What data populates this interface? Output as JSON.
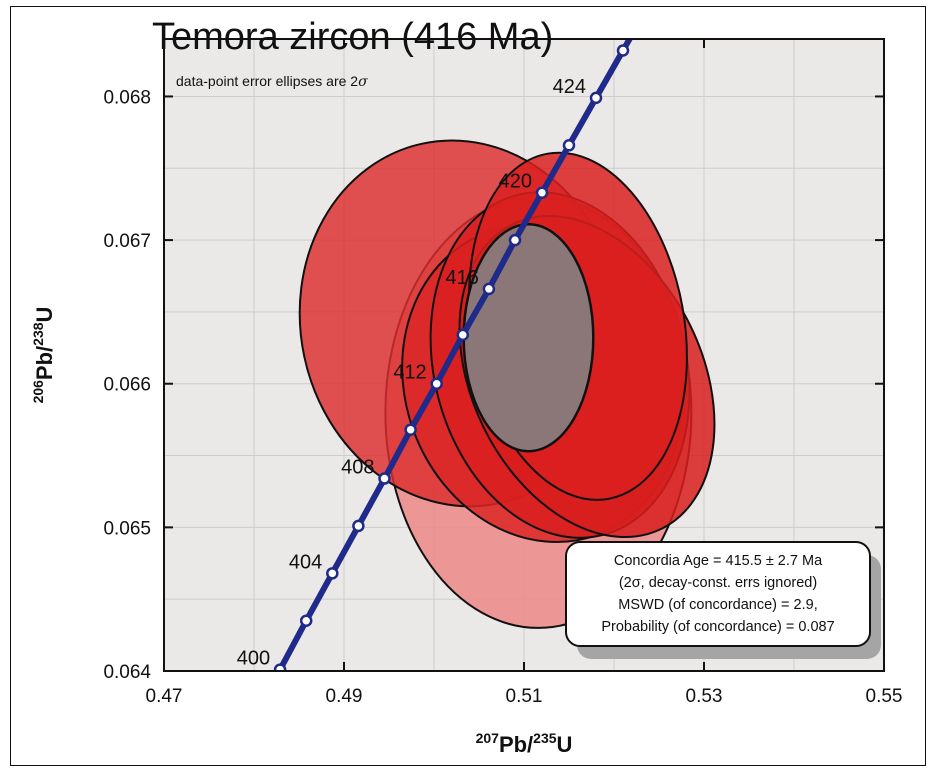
{
  "chart_data": {
    "type": "scatter",
    "title": "Temora zircon (416 Ma)",
    "note_prefix": "data-point error ellipses are 2",
    "note_sigma": "σ",
    "xlabel": {
      "sup1": "207",
      "main1": "Pb/",
      "sup2": "235",
      "main2": "U"
    },
    "ylabel": {
      "sup1": "206",
      "main1": "Pb/",
      "sup2": "238",
      "main2": "U"
    },
    "xlim": [
      0.47,
      0.55
    ],
    "ylim": [
      0.064,
      0.0684
    ],
    "x_ticks": [
      0.47,
      0.49,
      0.51,
      0.53,
      0.55
    ],
    "x_tick_labels": [
      "0.47",
      "0.49",
      "0.51",
      "0.53",
      "0.55"
    ],
    "y_ticks": [
      0.064,
      0.065,
      0.066,
      0.067,
      0.068
    ],
    "y_tick_labels": [
      "0.064",
      "0.065",
      "0.066",
      "0.067",
      "0.068"
    ],
    "concordia_points": [
      {
        "x": 0.4829,
        "y": 0.06401,
        "age": "400"
      },
      {
        "x": 0.4858,
        "y": 0.06435
      },
      {
        "x": 0.4887,
        "y": 0.06468,
        "age": "404"
      },
      {
        "x": 0.4916,
        "y": 0.06501
      },
      {
        "x": 0.4945,
        "y": 0.06534,
        "age": "408"
      },
      {
        "x": 0.4974,
        "y": 0.06568
      },
      {
        "x": 0.5003,
        "y": 0.066,
        "age": "412"
      },
      {
        "x": 0.5032,
        "y": 0.06634
      },
      {
        "x": 0.5061,
        "y": 0.06666,
        "age": "416"
      },
      {
        "x": 0.509,
        "y": 0.067
      },
      {
        "x": 0.512,
        "y": 0.06733,
        "age": "420"
      },
      {
        "x": 0.515,
        "y": 0.06766
      },
      {
        "x": 0.518,
        "y": 0.06799,
        "age": "424"
      },
      {
        "x": 0.521,
        "y": 0.06832
      }
    ],
    "ellipses": [
      {
        "cx": 0.5116,
        "cy": 0.0658,
        "rx": 0.017,
        "ry": 0.0015,
        "rot": 0,
        "fill": "#ec8b8a",
        "opacity": 0.88
      },
      {
        "cx": 0.503,
        "cy": 0.06642,
        "rx": 0.0178,
        "ry": 0.00128,
        "rot": 12,
        "fill": "#dc2d2d",
        "opacity": 0.82
      },
      {
        "cx": 0.512,
        "cy": 0.066,
        "rx": 0.0152,
        "ry": 0.00112,
        "rot": 20,
        "fill": "#dc2626",
        "opacity": 0.85
      },
      {
        "cx": 0.514,
        "cy": 0.06613,
        "rx": 0.014,
        "ry": 0.00122,
        "rot": 14,
        "fill": "#d91f1f",
        "opacity": 0.85
      },
      {
        "cx": 0.517,
        "cy": 0.06605,
        "rx": 0.0128,
        "ry": 0.00118,
        "rot": 26,
        "fill": "#d81d1d",
        "opacity": 0.85
      },
      {
        "cx": 0.516,
        "cy": 0.0664,
        "rx": 0.0118,
        "ry": 0.00122,
        "rot": 10,
        "fill": "#db2020",
        "opacity": 0.85
      }
    ],
    "concordia_ellipse": {
      "cx": 0.5105,
      "cy": 0.06632,
      "rx": 0.0072,
      "ry": 0.00079,
      "fill": "#8b7777"
    },
    "result_box": [
      "Concordia Age = 415.5 ± 2.7 Ma",
      "(2σ, decay-const. errs ignored)",
      "MSWD (of concordance) = 2.9,",
      "Probability (of concordance) = 0.087"
    ],
    "colors": {
      "plot_bg": "#ebe9e7",
      "concordia": "#1f2a8a",
      "shadow": "#a5a5a5"
    },
    "grid": true
  }
}
